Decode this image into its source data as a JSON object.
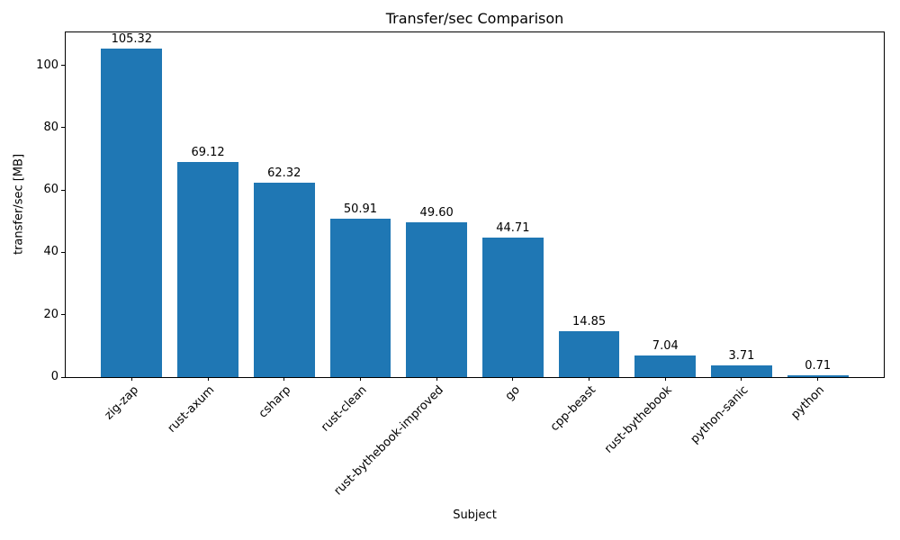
{
  "chart_data": {
    "type": "bar",
    "title": "Transfer/sec Comparison",
    "xlabel": "Subject",
    "ylabel": "transfer/sec [MB]",
    "categories": [
      "zig-zap",
      "rust-axum",
      "csharp",
      "rust-clean",
      "rust-bythebook-improved",
      "go",
      "cpp-beast",
      "rust-bythebook",
      "python-sanic",
      "python"
    ],
    "values": [
      105.32,
      69.12,
      62.32,
      50.91,
      49.6,
      44.71,
      14.85,
      7.04,
      3.71,
      0.71
    ],
    "value_labels": [
      "105.32",
      "69.12",
      "62.32",
      "50.91",
      "49.60",
      "44.71",
      "14.85",
      "7.04",
      "3.71",
      "0.71"
    ],
    "ylim": [
      0,
      110.6
    ],
    "yticks": [
      0,
      20,
      40,
      60,
      80,
      100
    ],
    "grid": "off",
    "legend": "none",
    "bar_color": "#1f77b4",
    "axis_color": "#000000",
    "background_color": "#ffffff"
  }
}
